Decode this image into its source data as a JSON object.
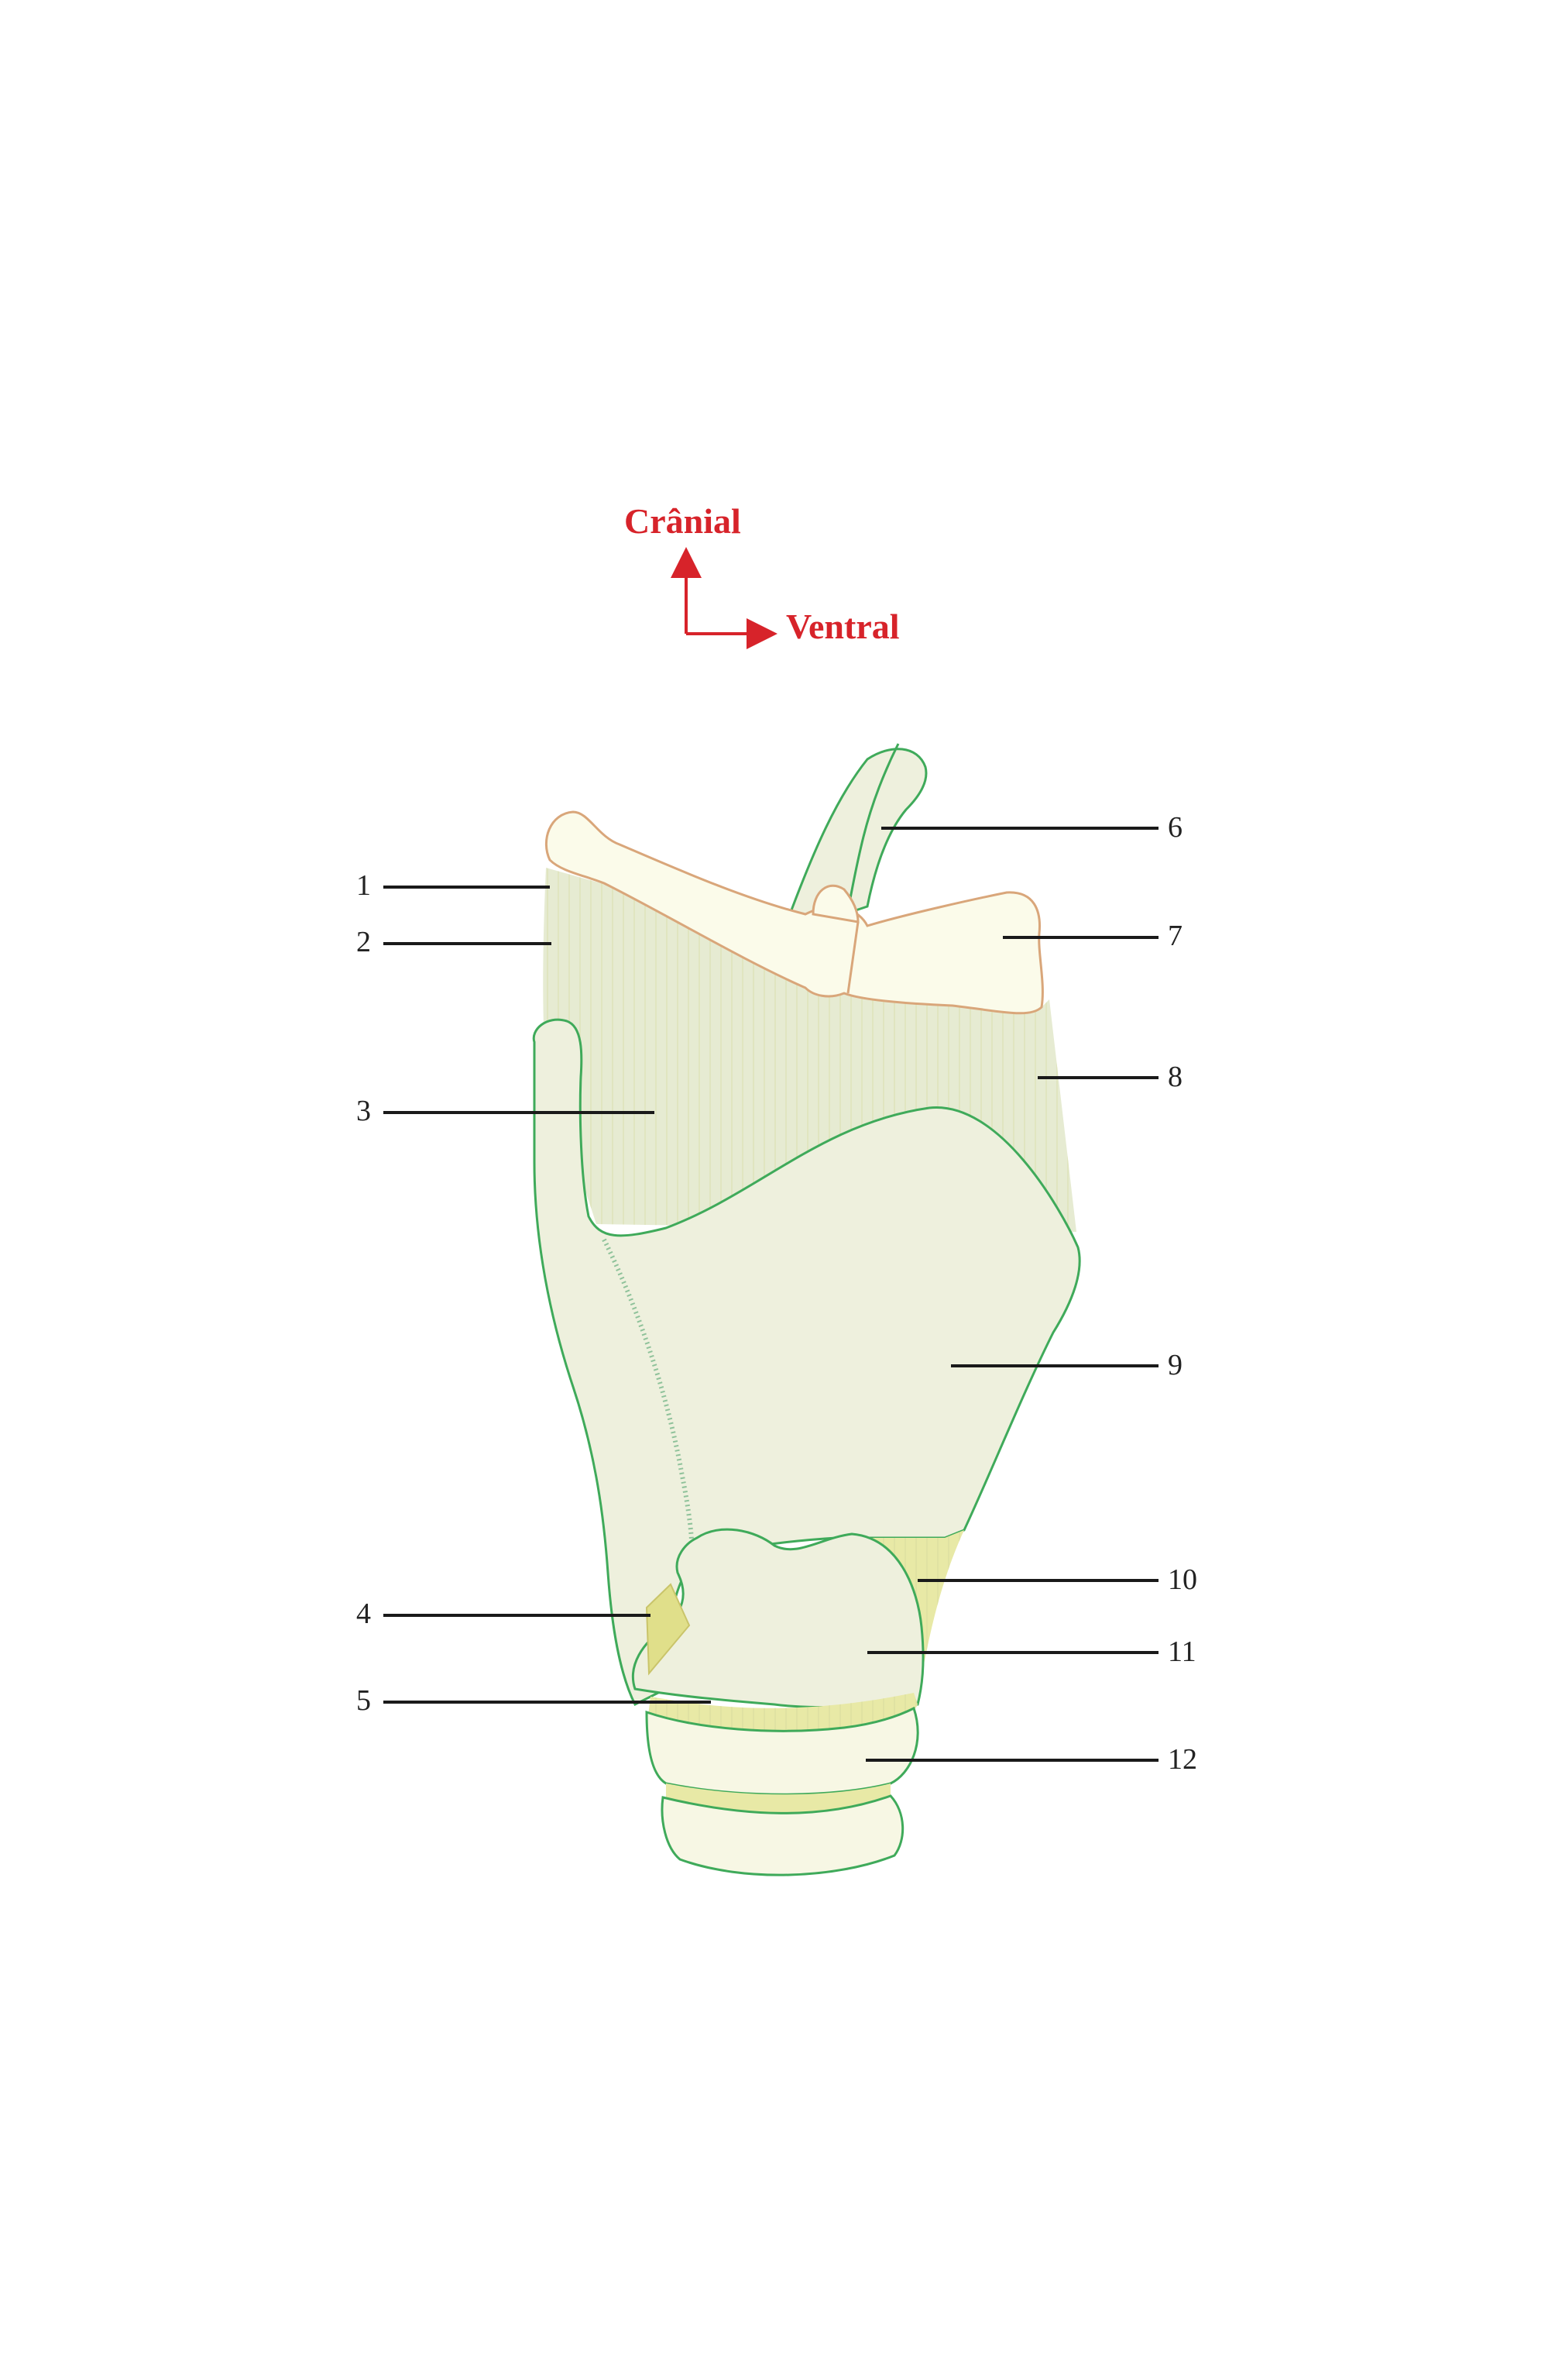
{
  "orientation": {
    "up_label": "Crânial",
    "right_label": "Ventral",
    "color": "#d7232a"
  },
  "callouts": [
    {
      "number": "1"
    },
    {
      "number": "2"
    },
    {
      "number": "3"
    },
    {
      "number": "4"
    },
    {
      "number": "5"
    },
    {
      "number": "6"
    },
    {
      "number": "7"
    },
    {
      "number": "8"
    },
    {
      "number": "9"
    },
    {
      "number": "10"
    },
    {
      "number": "11"
    },
    {
      "number": "12"
    }
  ],
  "colors": {
    "cartilage_fill": "#eef0dd",
    "cartilage_outline": "#3faa5a",
    "bone_fill": "#fbfbea",
    "bone_outline": "#d9a67a",
    "ligament_fill": "#e8e9a6"
  }
}
